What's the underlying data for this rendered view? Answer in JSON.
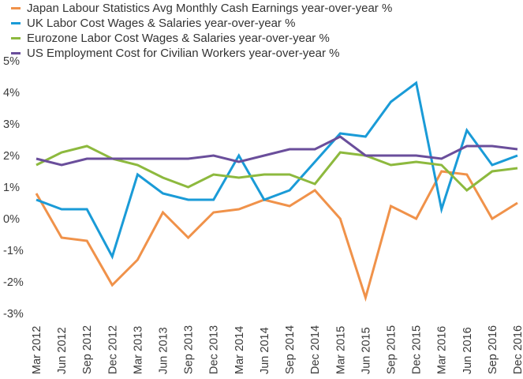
{
  "chart_data": {
    "type": "line",
    "title": "",
    "xlabel": "",
    "ylabel": "",
    "ylim": [
      -3,
      5
    ],
    "yticks": [
      "-3%",
      "-2%",
      "-1%",
      "0%",
      "1%",
      "2%",
      "3%",
      "4%",
      "5%"
    ],
    "grid": false,
    "legend_position": "top-left",
    "categories": [
      "Mar 2012",
      "Jun 2012",
      "Sep 2012",
      "Dec 2012",
      "Mar 2013",
      "Jun 2013",
      "Sep 2013",
      "Dec 2013",
      "Mar 2014",
      "Jun 2014",
      "Sep 2014",
      "Dec 2014",
      "Mar 2015",
      "Jun 2015",
      "Sep 2015",
      "Dec 2015",
      "Mar 2016",
      "Jun 2016",
      "Sep 2016",
      "Dec 2016"
    ],
    "x_points": 20,
    "series": [
      {
        "name": "Japan Labour Statistics Avg Monthly Cash Earnings year-over-year %",
        "color": "#f0924a",
        "values": [
          0.8,
          -0.6,
          -0.7,
          -2.1,
          -1.3,
          0.2,
          -0.6,
          0.2,
          0.3,
          0.6,
          0.4,
          0.9,
          0.0,
          -2.5,
          0.4,
          0.0,
          1.5,
          1.4,
          0.0,
          0.5
        ]
      },
      {
        "name": "UK Labor Cost Wages & Salaries year-over-year %",
        "color": "#1a9bd7",
        "values": [
          0.6,
          0.3,
          0.3,
          -1.2,
          1.4,
          0.8,
          0.6,
          0.6,
          2.0,
          0.6,
          0.9,
          1.8,
          2.7,
          2.6,
          3.7,
          4.3,
          0.3,
          2.8,
          1.7,
          2.0
        ]
      },
      {
        "name": "Eurozone Labor Cost Wages & Salaries year-over-year %",
        "color": "#8db93e",
        "values": [
          1.7,
          2.1,
          2.3,
          1.9,
          1.7,
          1.3,
          1.0,
          1.4,
          1.3,
          1.4,
          1.4,
          1.1,
          2.1,
          2.0,
          1.7,
          1.8,
          1.7,
          0.9,
          1.5,
          1.6
        ]
      },
      {
        "name": "US Employment Cost for Civilian Workers year-over-year %",
        "color": "#6a4e9b",
        "values": [
          1.9,
          1.7,
          1.9,
          1.9,
          1.9,
          1.9,
          1.9,
          2.0,
          1.8,
          2.0,
          2.2,
          2.2,
          2.6,
          2.0,
          2.0,
          2.0,
          1.9,
          2.3,
          2.3,
          2.2
        ]
      }
    ]
  }
}
